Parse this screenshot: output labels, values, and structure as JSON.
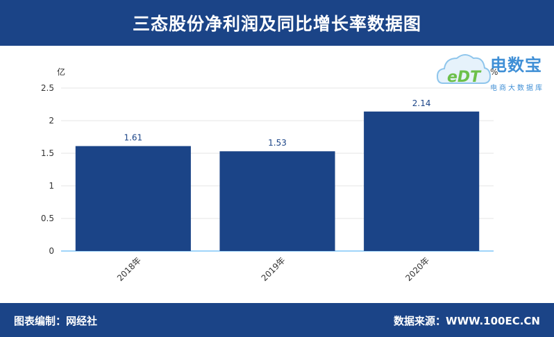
{
  "header": {
    "title": "三态股份净利润及同比增长率数据图"
  },
  "footer": {
    "left": "图表编制：网经社",
    "right": "数据来源：WWW.100EC.CN"
  },
  "logo": {
    "name": "电数宝",
    "subtitle": "电商大数据库",
    "mark": "eDT"
  },
  "colors": {
    "bar": "#1b4487",
    "header": "#1b4487",
    "axis": "#3fa9f5"
  },
  "chart_data": {
    "type": "bar",
    "title": "三态股份净利润及同比增长率数据图",
    "categories": [
      "2018年",
      "2019年",
      "2020年"
    ],
    "values": [
      1.61,
      1.53,
      2.14
    ],
    "value_labels": [
      "1.61",
      "1.53",
      "2.14"
    ],
    "ylabel": "亿",
    "y2label": "%",
    "ylim": [
      0,
      2.5
    ],
    "yticks": [
      "0",
      "0.5",
      "1",
      "1.5",
      "2",
      "2.5"
    ],
    "grid": true
  }
}
